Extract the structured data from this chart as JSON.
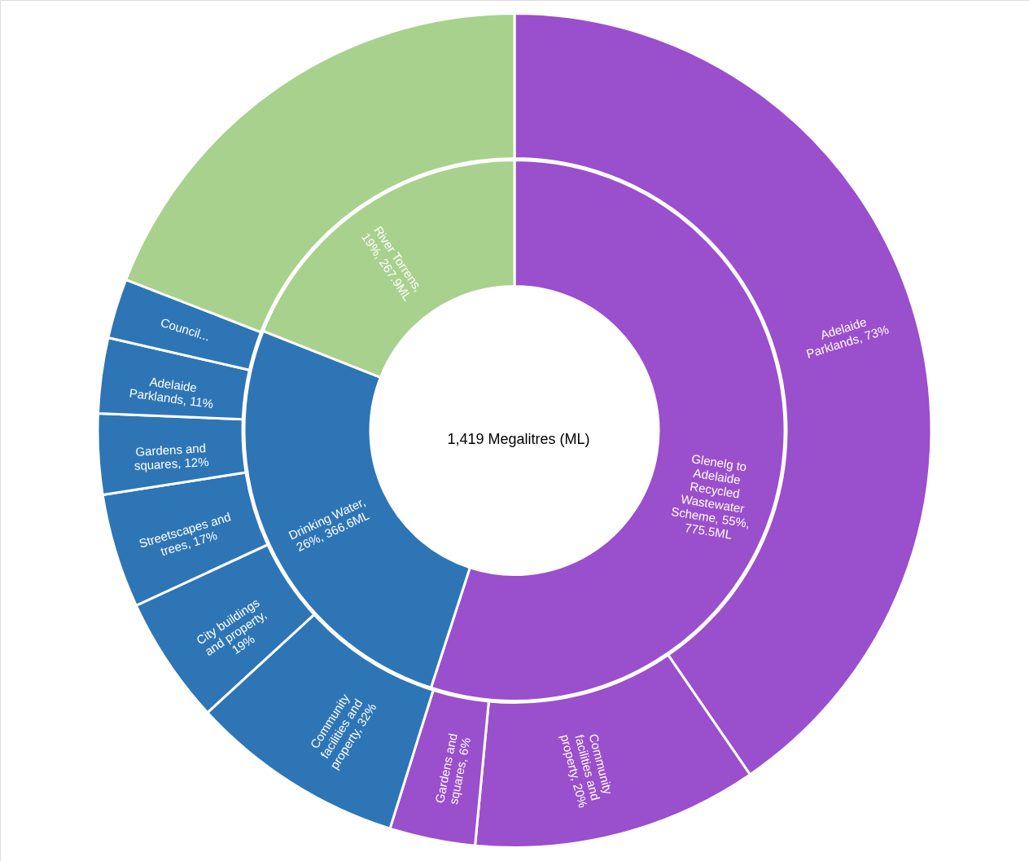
{
  "chart_data": {
    "type": "donut",
    "annotations": [
      "1,419 Megalitres (ML)",
      "Adelaide Parklands, 73%",
      "Community facilities and property, 20%",
      "Gardens and squares, 6%",
      "Community facilities and property, 32%",
      "City buildings and property, 19%",
      "Streetscapes and trees, 17%",
      "Gardens and squares, 12%",
      "Adelaide Parklands, 11%",
      "Council..."
    ],
    "series": [
      {
        "values": [
          55,
          26,
          19
        ],
        "value_labels": [
          "Glenelg to Adelaide Recycled Wastewater Scheme, 55%, 775.5ML",
          "Drinking Water, 26%, 366.6ML",
          "River Torrens, 19%, 267.9ML"
        ],
        "colors": [
          "#9a4fcc",
          "#2e75b6",
          "#a9d18e"
        ]
      },
      {
        "values": [
          40.2,
          11.0,
          3.3,
          8.3,
          4.9,
          4.4,
          3.1,
          2.9,
          2.3,
          19
        ],
        "colors": [
          "#9a4fcc",
          "#9a4fcc",
          "#9a4fcc",
          "#2e75b6",
          "#2e75b6",
          "#2e75b6",
          "#2e75b6",
          "#2e75b6",
          "#2e75b6",
          "#a9d18e"
        ]
      }
    ]
  }
}
